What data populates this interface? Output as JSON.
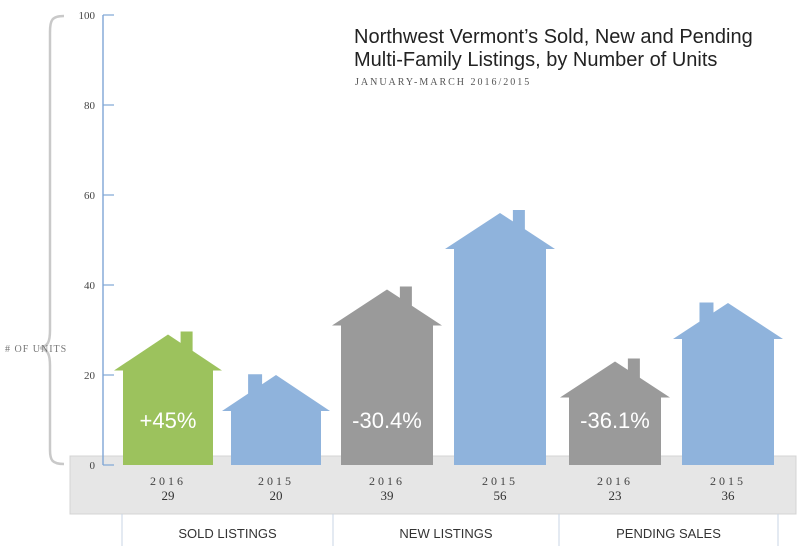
{
  "title_line1": "Northwest Vermont’s Sold, New and Pending",
  "title_line2": "Multi-Family Listings, by Number of Units",
  "subtitle": "JANUARY-MARCH 2016/2015",
  "y_axis_label": "# OF UNITS",
  "colors": {
    "sold_2016": "#9cc25d",
    "y2015": "#8fb3dc",
    "gray_2016": "#9a9a9a",
    "axis": "#7fa6d6",
    "band": "#e6e6e6"
  },
  "chart_data": {
    "type": "bar",
    "title": "Northwest Vermont’s Sold, New and Pending Multi-Family Listings, by Number of Units",
    "subtitle": "JANUARY-MARCH 2016/2015",
    "ylabel": "# OF UNITS",
    "ylim": [
      0,
      100
    ],
    "yticks": [
      "0",
      "20",
      "40",
      "60",
      "80",
      "100"
    ],
    "categories": [
      "SOLD LISTINGS",
      "NEW LISTINGS",
      "PENDING SALES"
    ],
    "series": [
      {
        "name": "2016",
        "values": [
          29,
          39,
          23
        ]
      },
      {
        "name": "2015",
        "values": [
          20,
          56,
          36
        ]
      }
    ],
    "bars": [
      {
        "group": "SOLD LISTINGS",
        "year": "2016",
        "value": 29,
        "label": "29",
        "pct": "+45%",
        "color": "#9cc25d"
      },
      {
        "group": "SOLD LISTINGS",
        "year": "2015",
        "value": 20,
        "label": "20",
        "pct": "",
        "color": "#8fb3dc"
      },
      {
        "group": "NEW LISTINGS",
        "year": "2016",
        "value": 39,
        "label": "39",
        "pct": "-30.4%",
        "color": "#9a9a9a"
      },
      {
        "group": "NEW LISTINGS",
        "year": "2015",
        "value": 56,
        "label": "56",
        "pct": "",
        "color": "#8fb3dc"
      },
      {
        "group": "PENDING SALES",
        "year": "2016",
        "value": 23,
        "label": "23",
        "pct": "-36.1%",
        "color": "#9a9a9a"
      },
      {
        "group": "PENDING SALES",
        "year": "2015",
        "value": 36,
        "label": "36",
        "pct": "",
        "color": "#8fb3dc"
      }
    ],
    "grid": false,
    "legend": "none"
  }
}
